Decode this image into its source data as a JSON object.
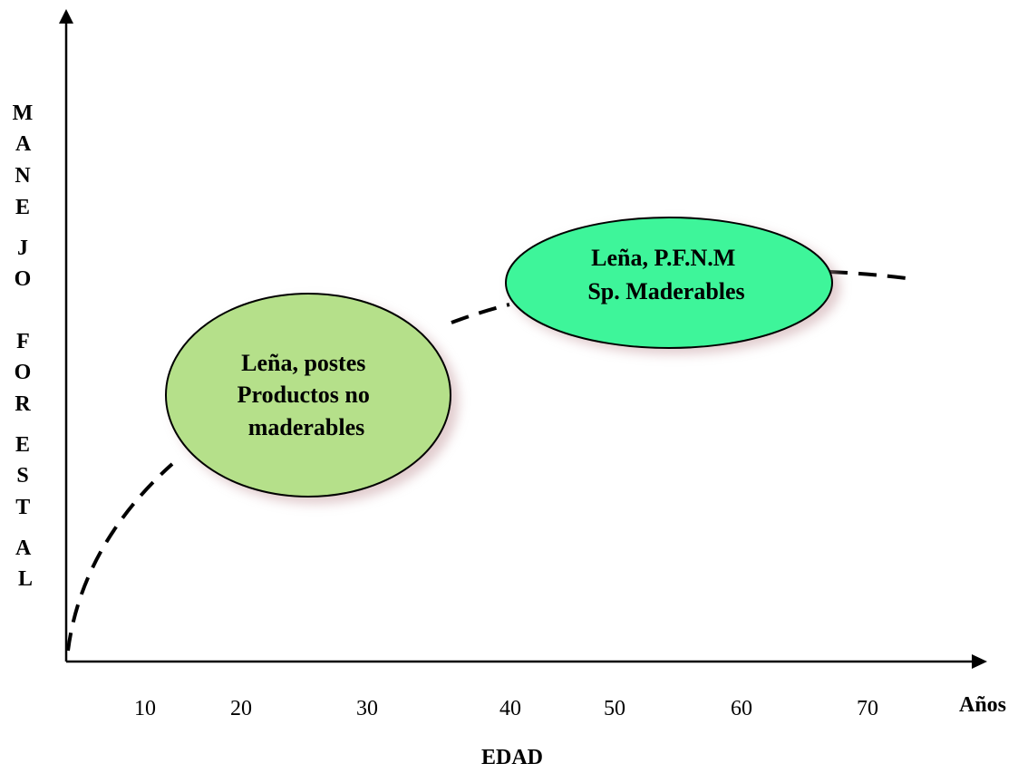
{
  "y_axis_label_letters": [
    "M",
    "A",
    "N",
    "E",
    "J",
    "O",
    "",
    "F",
    "O",
    "R",
    "E",
    "S",
    "T",
    "A",
    "L"
  ],
  "x_axis": {
    "ticks": [
      "10",
      "20",
      "30",
      "40",
      "50",
      "60",
      "70"
    ],
    "unit_label": "Años",
    "title": "EDAD"
  },
  "stages": [
    {
      "lines": [
        "Leña, postes",
        "Productos no",
        "maderables"
      ],
      "fill": "#b5e08a"
    },
    {
      "lines": [
        "Leña, P.F.N.M",
        "Sp. Maderables"
      ],
      "fill": "#3ef59a"
    }
  ],
  "colors": {
    "axis": "#000000",
    "curve": "#000000",
    "ellipse_stroke": "#000000",
    "ellipse_shadow": "#c9a2a6"
  },
  "curve_style": "dashed"
}
